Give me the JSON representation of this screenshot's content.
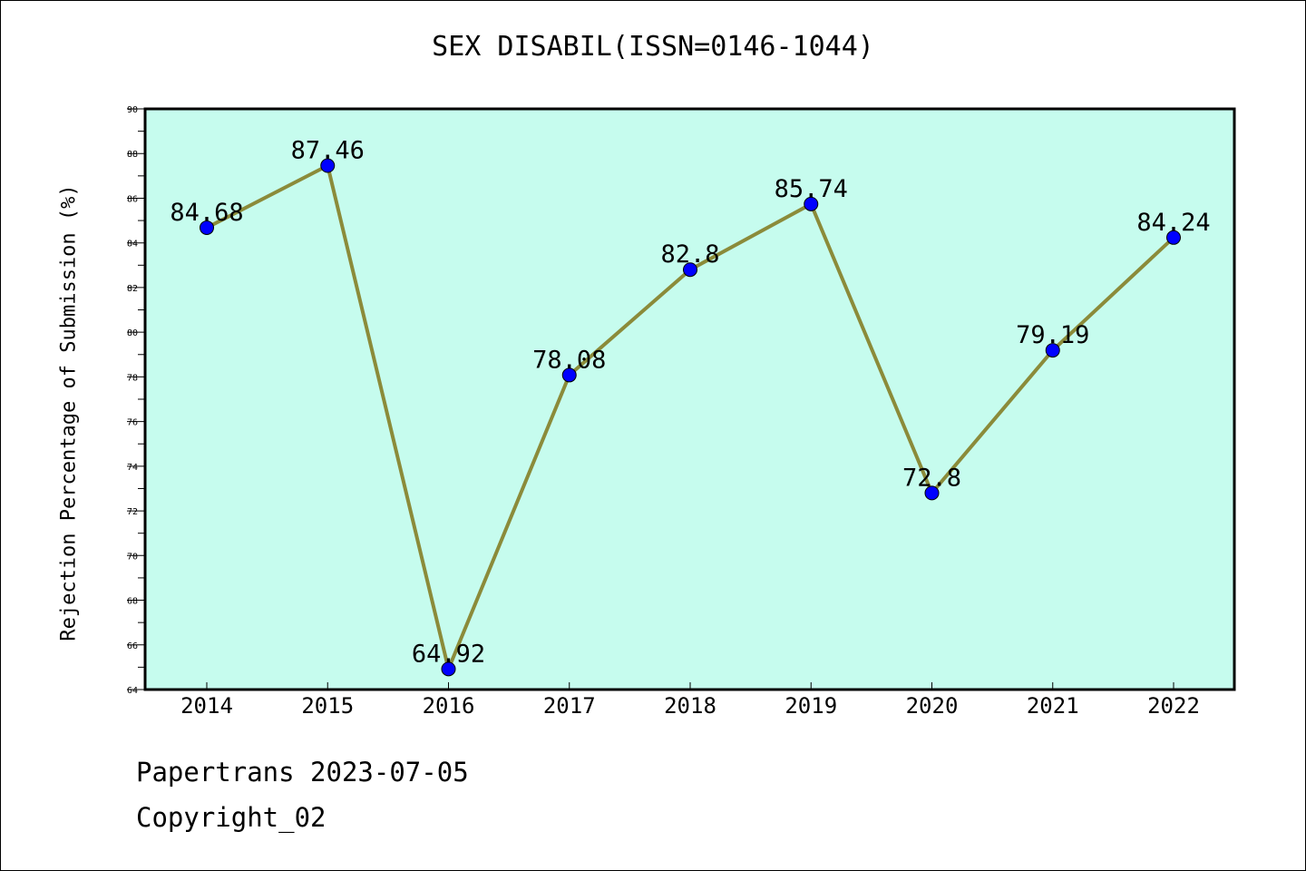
{
  "chart_data": {
    "type": "line",
    "title": "SEX DISABIL(ISSN=0146-1044)",
    "xlabel": "",
    "ylabel": "Rejection Percentage of Submission (%)",
    "categories": [
      "2014",
      "2015",
      "2016",
      "2017",
      "2018",
      "2019",
      "2020",
      "2021",
      "2022"
    ],
    "series": [
      {
        "values": [
          84.68,
          87.46,
          64.92,
          78.08,
          82.8,
          85.74,
          72.8,
          79.19,
          84.24
        ],
        "labels": [
          "84.68",
          "87.46",
          "64.92",
          "78.08",
          "82.8",
          "85.74",
          "72.8",
          "79.19",
          "84.24"
        ]
      }
    ],
    "ylim": [
      64,
      90
    ],
    "yticks": [
      64,
      66,
      68,
      70,
      72,
      74,
      76,
      78,
      80,
      82,
      84,
      86,
      88,
      90
    ],
    "grid": false,
    "colors": {
      "plot_background": "#c6fcee",
      "line": "#8b8b3a",
      "marker": "#0000ff"
    }
  },
  "footer": {
    "line1": "Papertrans 2023-07-05",
    "line2": "Copyright_02"
  }
}
